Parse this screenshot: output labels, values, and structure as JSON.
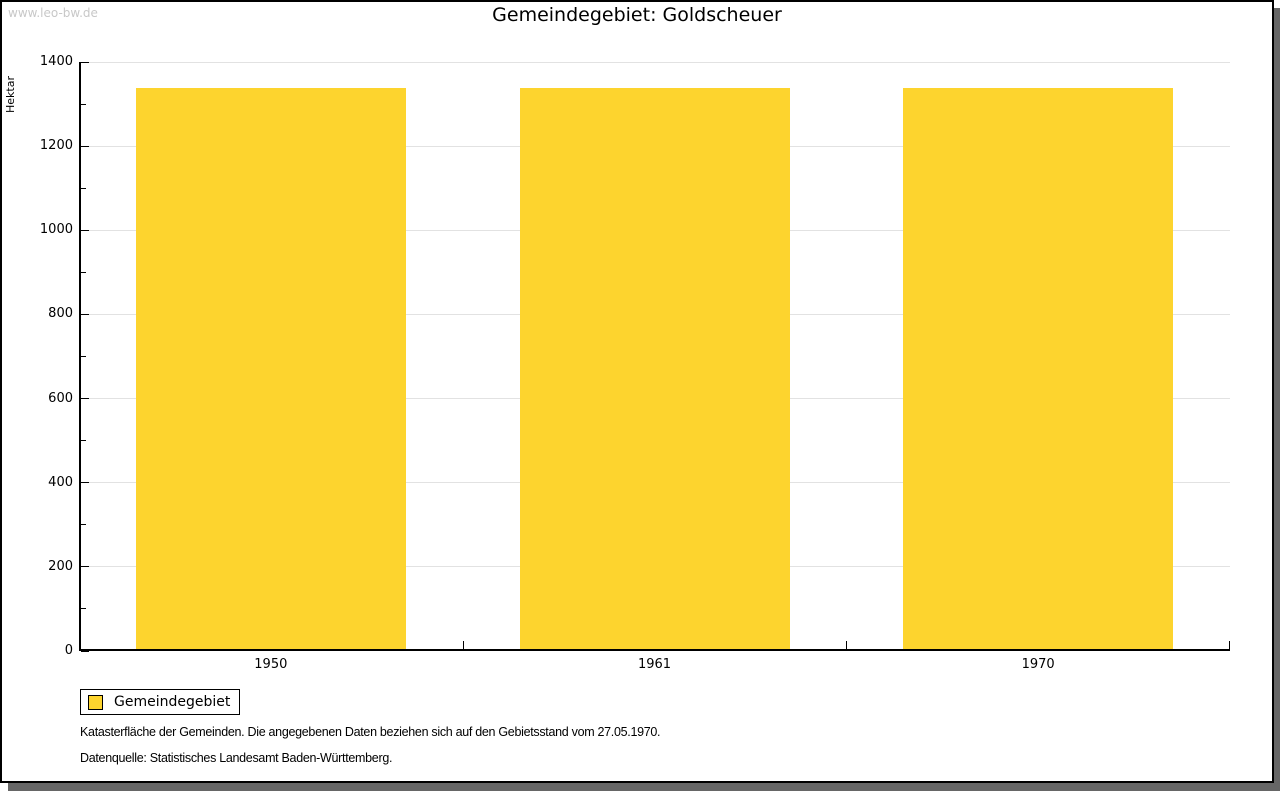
{
  "watermark": "www.leo-bw.de",
  "chart_data": {
    "type": "bar",
    "title": "Gemeindegebiet: Goldscheuer",
    "categories": [
      "1950",
      "1961",
      "1970"
    ],
    "series": [
      {
        "name": "Gemeindegebiet",
        "color": "#fdd42e",
        "values": [
          1339,
          1339,
          1339
        ]
      }
    ],
    "xlabel": "",
    "ylabel": "Hektar",
    "ylim": [
      0,
      1400
    ],
    "ytick_step": 200,
    "yminor_step": 100,
    "grid": true,
    "gridline_color": "#e2e2e2",
    "legend_position": "bottom-left"
  },
  "legend": {
    "items": [
      {
        "label": "Gemeindegebiet",
        "color": "#fdd42e"
      }
    ]
  },
  "footnotes": [
    "Katasterfläche der Gemeinden. Die angegebenen Daten beziehen sich auf den Gebietsstand vom 27.05.1970.",
    "Datenquelle: Statistisches Landesamt Baden-Württemberg."
  ],
  "colors": {
    "bar": "#fdd42e",
    "axis": "#000000",
    "gridline": "#e2e2e2",
    "watermark": "#c8c8c8",
    "shadow": "#666666"
  }
}
